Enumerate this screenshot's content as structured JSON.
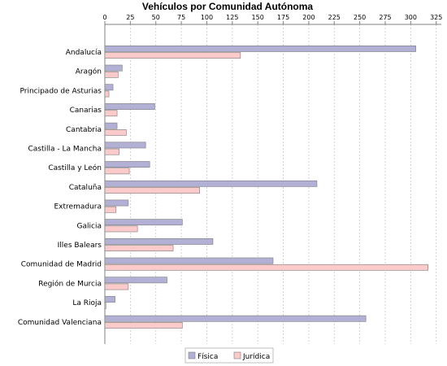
{
  "chart_data": {
    "type": "bar",
    "orientation": "horizontal",
    "title": "Vehículos por Comunidad Autónoma",
    "categories": [
      "Andalucía",
      "Aragón",
      "Principado de Asturias",
      "Canarias",
      "Cantabria",
      "Castilla - La Mancha",
      "Castilla y León",
      "Cataluña",
      "Extremadura",
      "Galicia",
      "Illes Balears",
      "Comunidad de Madrid",
      "Región de Murcia",
      "La Rioja",
      "Comunidad Valenciana"
    ],
    "series": [
      {
        "name": "Física",
        "color": "#b3b0d6",
        "values": [
          305,
          17,
          8,
          49,
          12,
          40,
          44,
          208,
          23,
          76,
          106,
          165,
          61,
          10,
          256
        ]
      },
      {
        "name": "Jurídica",
        "color": "#fbcaca",
        "values": [
          133,
          13,
          4,
          12,
          21,
          14,
          24,
          93,
          11,
          32,
          67,
          317,
          23,
          1,
          76
        ]
      }
    ],
    "xticks": [
      0,
      25,
      50,
      75,
      100,
      125,
      150,
      175,
      200,
      225,
      250,
      275,
      300,
      325
    ],
    "xlim": [
      0,
      330
    ],
    "grid": true,
    "legend_position": "bottom"
  }
}
